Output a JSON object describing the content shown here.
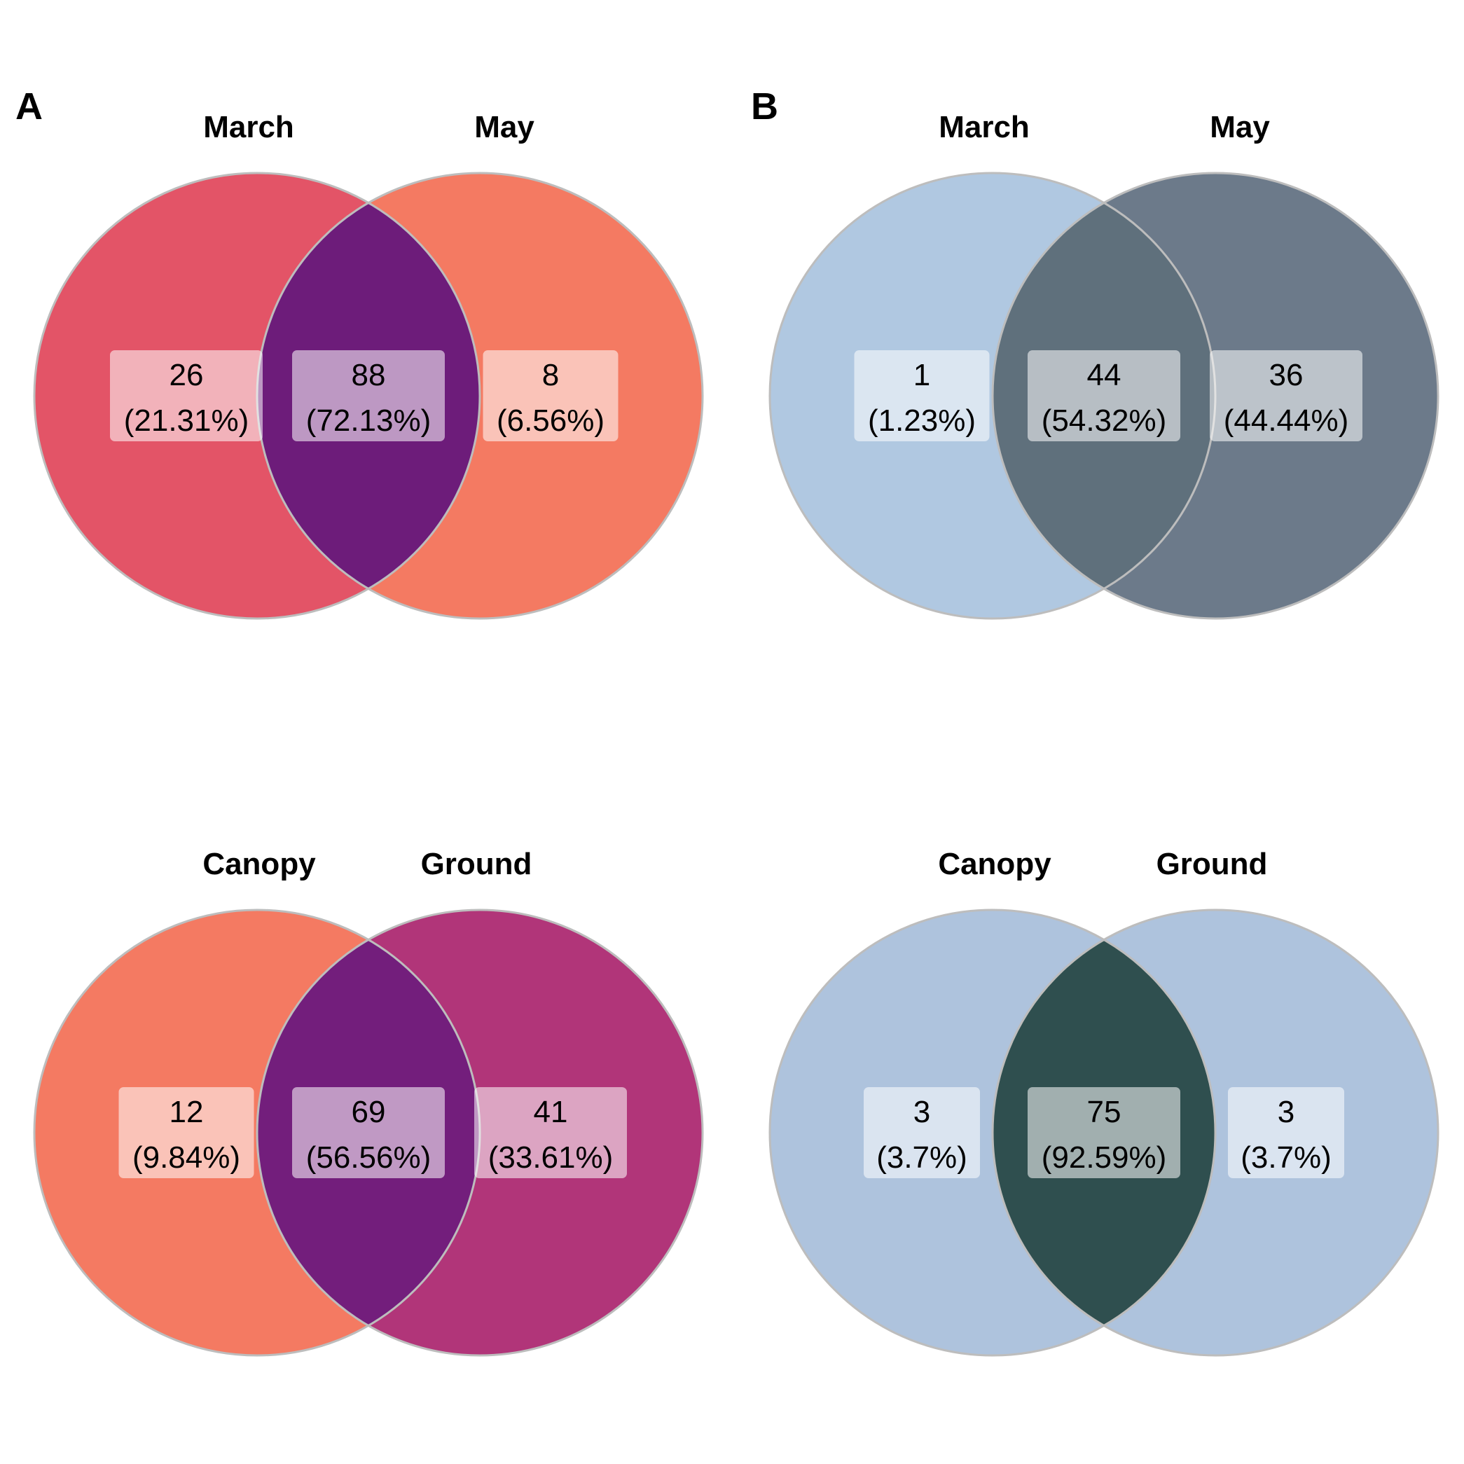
{
  "panels": [
    {
      "letter": "A"
    },
    {
      "letter": "B"
    }
  ],
  "chart_data": [
    {
      "type": "venn",
      "panel": "A",
      "sets": [
        "March",
        "May"
      ],
      "colors": {
        "left": "#E35467",
        "right": "#F47A62",
        "overlap": "#6D1C7A"
      },
      "regions": [
        {
          "region": "March only",
          "count": "26",
          "percent": "(21.31%)"
        },
        {
          "region": "March ∩ May",
          "count": "88",
          "percent": "(72.13%)"
        },
        {
          "region": "May only",
          "count": "8",
          "percent": "(6.56%)"
        }
      ]
    },
    {
      "type": "venn",
      "panel": "B",
      "sets": [
        "March",
        "May"
      ],
      "colors": {
        "left": "#B0C8E1",
        "right": "#6C7A8A",
        "overlap": "#5F707C"
      },
      "regions": [
        {
          "region": "March only",
          "count": "1",
          "percent": "(1.23%)"
        },
        {
          "region": "March ∩ May",
          "count": "44",
          "percent": "(54.32%)"
        },
        {
          "region": "May only",
          "count": "36",
          "percent": "(44.44%)"
        }
      ]
    },
    {
      "type": "venn",
      "panel": "A",
      "sets": [
        "Canopy",
        "Ground"
      ],
      "colors": {
        "left": "#F47A62",
        "right": "#B13579",
        "overlap": "#731E7C"
      },
      "regions": [
        {
          "region": "Canopy only",
          "count": "12",
          "percent": "(9.84%)"
        },
        {
          "region": "Canopy ∩ Ground",
          "count": "69",
          "percent": "(56.56%)"
        },
        {
          "region": "Ground only",
          "count": "41",
          "percent": "(33.61%)"
        }
      ]
    },
    {
      "type": "venn",
      "panel": "B",
      "sets": [
        "Canopy",
        "Ground"
      ],
      "colors": {
        "left": "#AEC3DD",
        "right": "#AEC3DD",
        "overlap": "#2F4F4F"
      },
      "regions": [
        {
          "region": "Canopy only",
          "count": "3",
          "percent": "(3.7%)"
        },
        {
          "region": "Canopy ∩ Ground",
          "count": "75",
          "percent": "(92.59%)"
        },
        {
          "region": "Ground only",
          "count": "3",
          "percent": "(3.7%)"
        }
      ]
    }
  ]
}
